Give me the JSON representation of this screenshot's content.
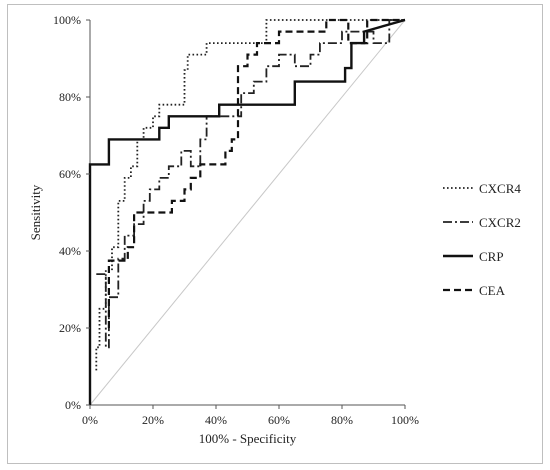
{
  "chart_data": {
    "type": "line",
    "title": "",
    "xlabel": "100% - Specificity",
    "ylabel": "Sensitivity",
    "xlim": [
      0,
      100
    ],
    "ylim": [
      0,
      100
    ],
    "x_ticks": [
      "0%",
      "20%",
      "40%",
      "60%",
      "80%",
      "100%"
    ],
    "y_ticks": [
      "0%",
      "20%",
      "40%",
      "60%",
      "80%",
      "100%"
    ],
    "grid": false,
    "legend_position": "right",
    "reference_line": {
      "x": [
        0,
        100
      ],
      "y": [
        0,
        100
      ],
      "color": "#c8c8c8"
    },
    "series": [
      {
        "name": "CXCR4",
        "dash": "dotted",
        "color": "#222222",
        "x": [
          2,
          2,
          3,
          3,
          5,
          5,
          7,
          7,
          9,
          9,
          11,
          11,
          13,
          13,
          15,
          15,
          17,
          17,
          20,
          20,
          22,
          22,
          30,
          30,
          31,
          31,
          37,
          37,
          56,
          56,
          100
        ],
        "y": [
          9,
          15,
          15,
          25,
          25,
          35,
          35,
          41,
          41,
          53,
          53,
          59,
          59,
          62,
          62,
          69,
          69,
          72,
          72,
          75,
          75,
          78,
          78,
          87,
          87,
          91,
          91,
          94,
          94,
          100,
          100
        ]
      },
      {
        "name": "CXCR2",
        "dash": "dashdot",
        "color": "#222222",
        "x": [
          2,
          5,
          5,
          6,
          6,
          9,
          9,
          11,
          11,
          14,
          14,
          17,
          17,
          19,
          19,
          22,
          22,
          25,
          25,
          29,
          29,
          32,
          32,
          35,
          35,
          37,
          37,
          48,
          48,
          52,
          52,
          56,
          56,
          60,
          60,
          65,
          65,
          70,
          70,
          73,
          73,
          80,
          80,
          90,
          90,
          95,
          95,
          100
        ],
        "y": [
          34,
          34,
          15,
          15,
          28,
          28,
          38,
          38,
          44,
          44,
          47,
          47,
          53,
          53,
          56,
          56,
          59,
          59,
          62,
          62,
          66,
          66,
          62,
          62,
          69,
          69,
          75,
          75,
          81,
          81,
          84,
          84,
          88,
          88,
          91,
          91,
          88,
          88,
          91,
          91,
          94,
          94,
          97,
          97,
          94,
          94,
          100,
          100
        ]
      },
      {
        "name": "CRP",
        "dash": "solid",
        "color": "#111111",
        "x": [
          0,
          0,
          6,
          6,
          22,
          22,
          25,
          25,
          35,
          35,
          41,
          41,
          60,
          60,
          65,
          65,
          81,
          81,
          83,
          83,
          87,
          87,
          100
        ],
        "y": [
          0,
          62.5,
          62.5,
          69,
          69,
          72,
          72,
          75,
          75,
          75,
          75,
          78,
          78,
          78,
          78,
          84,
          84,
          87.5,
          87.5,
          94,
          94,
          97,
          100
        ]
      },
      {
        "name": "CEA",
        "dash": "dashed",
        "color": "#111111",
        "x": [
          6,
          6,
          8,
          8,
          12,
          12,
          14,
          14,
          26,
          26,
          30,
          30,
          32,
          32,
          35,
          35,
          43,
          43,
          45,
          45,
          47,
          47,
          50,
          50,
          53,
          53,
          60,
          60,
          75,
          75,
          82,
          82,
          88,
          88,
          100
        ],
        "y": [
          20,
          37.5,
          37.5,
          37.5,
          37.5,
          41,
          41,
          50,
          50,
          53,
          53,
          56,
          56,
          59,
          59,
          62.5,
          62.5,
          66,
          66,
          69,
          69,
          88,
          88,
          91,
          91,
          94,
          94,
          97,
          97,
          100,
          100,
          94,
          94,
          100,
          100
        ]
      }
    ]
  }
}
